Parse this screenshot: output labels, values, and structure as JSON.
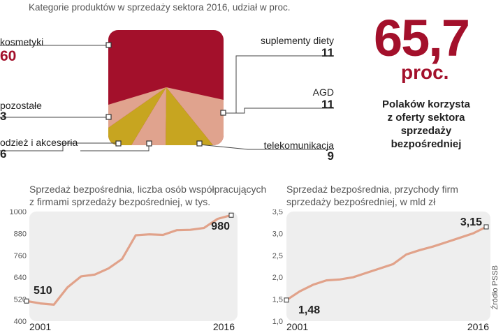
{
  "pie_title": "Kategorie produktów w sprzedaży sektora 2016, udział w proc.",
  "pie_labels": {
    "kosmetyki": "kosmetyki",
    "pozostale": "pozostałe",
    "odziez": "odzież i akcesoria",
    "suplementy": "suplementy diety",
    "agd": "AGD",
    "telekom": "telekomunikacja"
  },
  "pie_values": {
    "kosmetyki": "60",
    "pozostale": "3",
    "odziez": "6",
    "suplementy": "11",
    "agd": "11",
    "telekom": "9"
  },
  "highlight": {
    "number": "65,7",
    "unit": "proc.",
    "caption": [
      "Polaków korzysta",
      "z oferty sektora",
      "sprzedaży",
      "bezpośredniej"
    ]
  },
  "source": "Źródło PSSB",
  "colors": {
    "crimson": "#a3102b",
    "salmon": "#e0a38e",
    "mustard": "#c7a520",
    "line": "#e1a28a",
    "panel": "#eeeeee"
  },
  "chart_data": [
    {
      "type": "area",
      "title": "Kategorie produktów w sprzedaży sektora 2016, udział w proc.",
      "categories": [
        "kosmetyki",
        "suplementy diety",
        "AGD",
        "telekomunikacja",
        "odzież i akcesoria",
        "pozostałe"
      ],
      "values": [
        60,
        11,
        11,
        9,
        6,
        3
      ]
    },
    {
      "type": "line",
      "title": "Sprzedaż bezpośrednia, liczba osób współpracujących z firmami sprzedaży bezpośredniej, w tys.",
      "x_labels": [
        "2001",
        "2016"
      ],
      "x": [
        2001,
        2002,
        2003,
        2004,
        2005,
        2006,
        2007,
        2008,
        2009,
        2010,
        2011,
        2012,
        2013,
        2014,
        2015,
        2016
      ],
      "values": [
        510,
        497,
        490,
        585,
        645,
        655,
        688,
        740,
        870,
        875,
        872,
        898,
        900,
        910,
        960,
        980
      ],
      "yticks": [
        "1000",
        "880",
        "760",
        "640",
        "520",
        "400"
      ],
      "ylim": [
        400,
        1000
      ],
      "annotations": {
        "start": "510",
        "end": "980"
      },
      "grid": false
    },
    {
      "type": "line",
      "title": "Sprzedaż bezpośrednia, przychody firm sprzedaży bezpośredniej, w mld zł",
      "x_labels": [
        "2001",
        "2016"
      ],
      "x": [
        2001,
        2002,
        2003,
        2004,
        2005,
        2006,
        2007,
        2008,
        2009,
        2010,
        2011,
        2012,
        2013,
        2014,
        2015,
        2016
      ],
      "values": [
        1.48,
        1.68,
        1.83,
        1.93,
        1.95,
        2.0,
        2.1,
        2.2,
        2.3,
        2.52,
        2.62,
        2.7,
        2.8,
        2.9,
        3.0,
        3.15
      ],
      "yticks": [
        "3,5",
        "3,0",
        "2,5",
        "2,0",
        "1,5",
        "1,0"
      ],
      "ylim": [
        1.0,
        3.5
      ],
      "annotations": {
        "start": "1,48",
        "end": "3,15"
      },
      "grid": false
    }
  ]
}
